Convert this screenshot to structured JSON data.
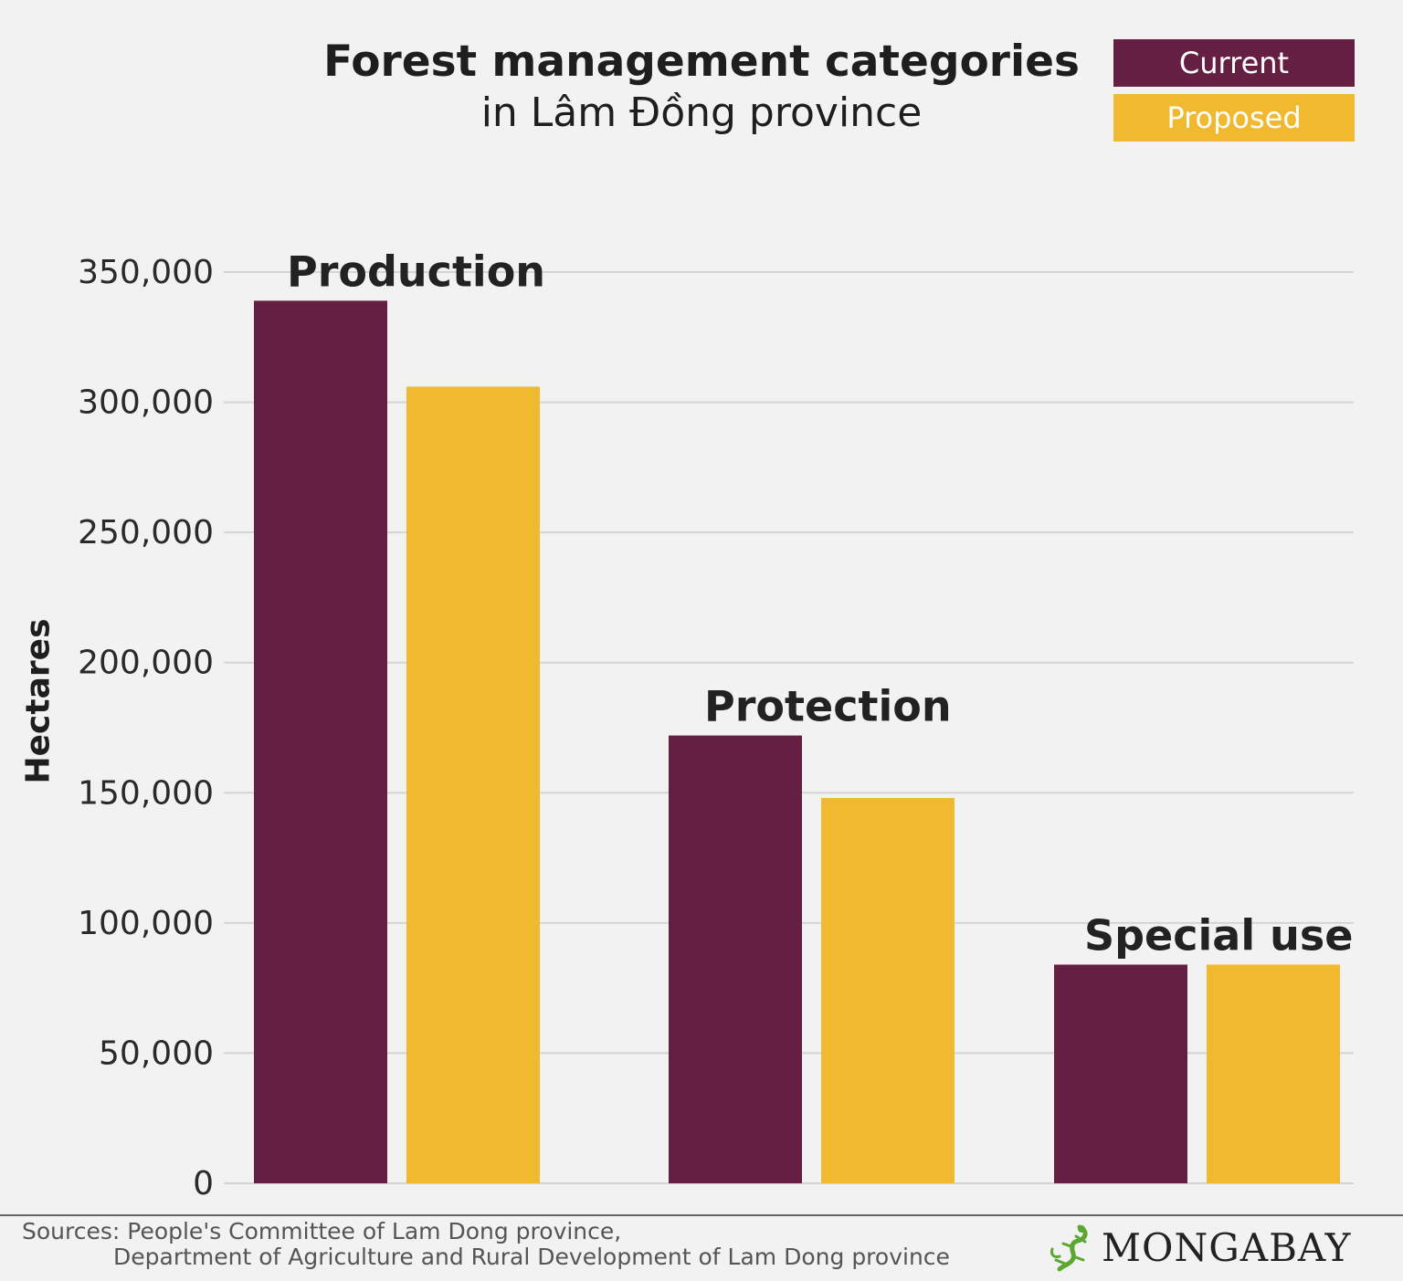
{
  "colors": {
    "current": "#651f42",
    "proposed": "#f0b92f",
    "grid": "#d4d4d4",
    "background": "#f2f2f2"
  },
  "legend": {
    "current": "Current",
    "proposed": "Proposed"
  },
  "footer": {
    "source_line1": "Sources: People's Committee of Lam Dong province,",
    "source_line2": "Department of Agriculture and Rural Development of Lam Dong province",
    "logo_text": "MONGABAY",
    "logo_icon": "gecko-icon"
  },
  "chart_data": {
    "type": "bar",
    "title": "Forest management categories",
    "subtitle": "in Lâm Đồng province",
    "ylabel": "Hectares",
    "xlabel": "",
    "categories": [
      "Production",
      "Protection",
      "Special use"
    ],
    "series": [
      {
        "name": "Current",
        "values": [
          339000,
          172000,
          84000
        ]
      },
      {
        "name": "Proposed",
        "values": [
          306000,
          148000,
          84000
        ]
      }
    ],
    "ylim": [
      0,
      350000
    ],
    "yticks": [
      0,
      50000,
      100000,
      150000,
      200000,
      250000,
      300000,
      350000
    ],
    "ytick_labels": [
      "0",
      "50,000",
      "100,000",
      "150,000",
      "200,000",
      "250,000",
      "300,000",
      "350,000"
    ],
    "grid": true,
    "legend_position": "top-right"
  }
}
